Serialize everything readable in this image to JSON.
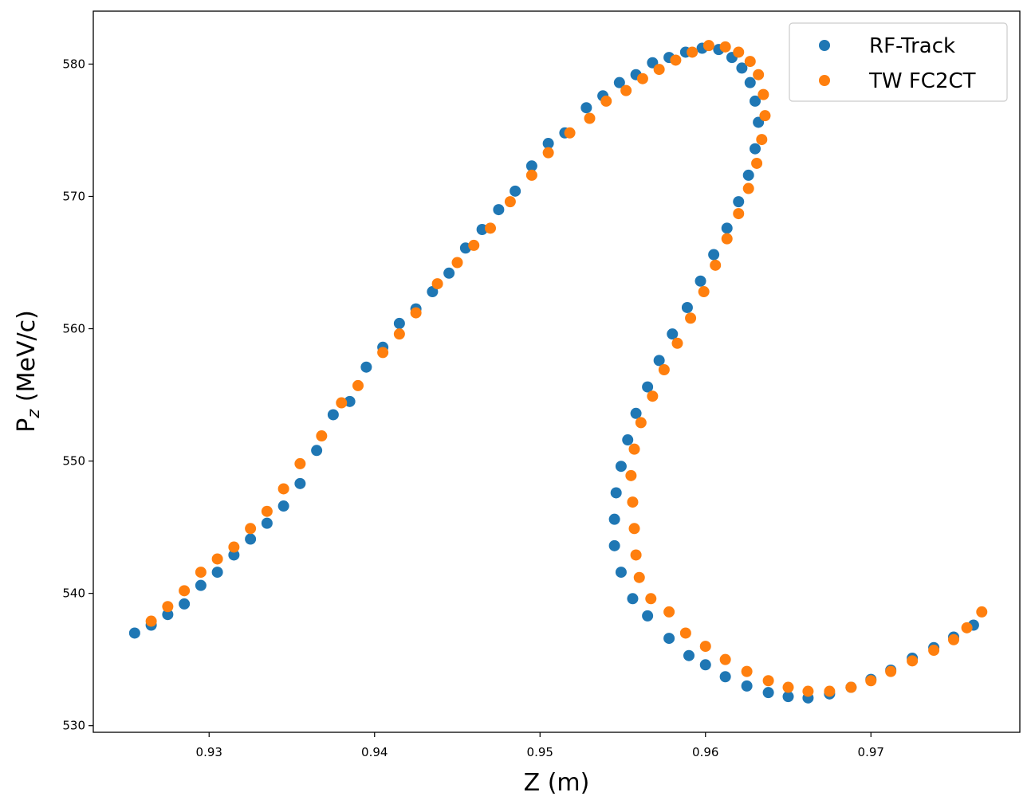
{
  "chart_data": {
    "type": "scatter",
    "xlabel": "Z (m)",
    "ylabel_main": "P",
    "ylabel_sub": "z",
    "ylabel_rest": " (MeV/c)",
    "xlim": [
      0.923,
      0.979
    ],
    "ylim": [
      529.5,
      584
    ],
    "xticks": [
      0.93,
      0.94,
      0.95,
      0.96,
      0.97
    ],
    "xtick_labels": [
      "0.93",
      "0.94",
      "0.95",
      "0.96",
      "0.97"
    ],
    "yticks": [
      530,
      540,
      550,
      560,
      570,
      580
    ],
    "ytick_labels": [
      "530",
      "540",
      "550",
      "560",
      "570",
      "580"
    ],
    "grid": false,
    "legend_position": "top-right",
    "series": [
      {
        "name": "RF-Track",
        "color": "#1f77b4",
        "points": [
          [
            0.9255,
            537.0
          ],
          [
            0.9265,
            537.6
          ],
          [
            0.9275,
            538.4
          ],
          [
            0.9285,
            539.2
          ],
          [
            0.9295,
            540.6
          ],
          [
            0.9305,
            541.6
          ],
          [
            0.9315,
            542.9
          ],
          [
            0.9325,
            544.1
          ],
          [
            0.9335,
            545.3
          ],
          [
            0.9345,
            546.6
          ],
          [
            0.9355,
            548.3
          ],
          [
            0.9365,
            550.8
          ],
          [
            0.9375,
            553.5
          ],
          [
            0.9385,
            554.5
          ],
          [
            0.9395,
            557.1
          ],
          [
            0.9405,
            558.6
          ],
          [
            0.9415,
            560.4
          ],
          [
            0.9425,
            561.5
          ],
          [
            0.9435,
            562.8
          ],
          [
            0.9445,
            564.2
          ],
          [
            0.9455,
            566.1
          ],
          [
            0.9465,
            567.5
          ],
          [
            0.9475,
            569.0
          ],
          [
            0.9485,
            570.4
          ],
          [
            0.9495,
            572.3
          ],
          [
            0.9505,
            574.0
          ],
          [
            0.9515,
            574.8
          ],
          [
            0.9528,
            576.7
          ],
          [
            0.9538,
            577.6
          ],
          [
            0.9548,
            578.6
          ],
          [
            0.9558,
            579.2
          ],
          [
            0.9568,
            580.1
          ],
          [
            0.9578,
            580.5
          ],
          [
            0.9588,
            580.9
          ],
          [
            0.9598,
            581.2
          ],
          [
            0.9608,
            581.1
          ],
          [
            0.9616,
            580.5
          ],
          [
            0.9622,
            579.7
          ],
          [
            0.9627,
            578.6
          ],
          [
            0.963,
            577.2
          ],
          [
            0.9632,
            575.6
          ],
          [
            0.963,
            573.6
          ],
          [
            0.9626,
            571.6
          ],
          [
            0.962,
            569.6
          ],
          [
            0.9613,
            567.6
          ],
          [
            0.9605,
            565.6
          ],
          [
            0.9597,
            563.6
          ],
          [
            0.9589,
            561.6
          ],
          [
            0.958,
            559.6
          ],
          [
            0.9572,
            557.6
          ],
          [
            0.9565,
            555.6
          ],
          [
            0.9558,
            553.6
          ],
          [
            0.9553,
            551.6
          ],
          [
            0.9549,
            549.6
          ],
          [
            0.9546,
            547.6
          ],
          [
            0.9545,
            545.6
          ],
          [
            0.9545,
            543.6
          ],
          [
            0.9549,
            541.6
          ],
          [
            0.9556,
            539.6
          ],
          [
            0.9565,
            538.3
          ],
          [
            0.9578,
            536.6
          ],
          [
            0.959,
            535.3
          ],
          [
            0.96,
            534.6
          ],
          [
            0.9612,
            533.7
          ],
          [
            0.9625,
            533.0
          ],
          [
            0.9638,
            532.5
          ],
          [
            0.965,
            532.2
          ],
          [
            0.9662,
            532.1
          ],
          [
            0.9675,
            532.4
          ],
          [
            0.9688,
            532.9
          ],
          [
            0.97,
            533.5
          ],
          [
            0.9712,
            534.2
          ],
          [
            0.9725,
            535.1
          ],
          [
            0.9738,
            535.9
          ],
          [
            0.975,
            536.7
          ],
          [
            0.9762,
            537.6
          ]
        ]
      },
      {
        "name": "TW FC2CT",
        "color": "#ff7f0e",
        "points": [
          [
            0.9265,
            537.9
          ],
          [
            0.9275,
            539.0
          ],
          [
            0.9285,
            540.2
          ],
          [
            0.9295,
            541.6
          ],
          [
            0.9305,
            542.6
          ],
          [
            0.9315,
            543.5
          ],
          [
            0.9325,
            544.9
          ],
          [
            0.9335,
            546.2
          ],
          [
            0.9345,
            547.9
          ],
          [
            0.9355,
            549.8
          ],
          [
            0.9368,
            551.9
          ],
          [
            0.938,
            554.4
          ],
          [
            0.939,
            555.7
          ],
          [
            0.9405,
            558.2
          ],
          [
            0.9415,
            559.6
          ],
          [
            0.9425,
            561.2
          ],
          [
            0.9438,
            563.4
          ],
          [
            0.945,
            565.0
          ],
          [
            0.946,
            566.3
          ],
          [
            0.947,
            567.6
          ],
          [
            0.9482,
            569.6
          ],
          [
            0.9495,
            571.6
          ],
          [
            0.9505,
            573.3
          ],
          [
            0.9518,
            574.8
          ],
          [
            0.953,
            575.9
          ],
          [
            0.954,
            577.2
          ],
          [
            0.9552,
            578.0
          ],
          [
            0.9562,
            578.9
          ],
          [
            0.9572,
            579.6
          ],
          [
            0.9582,
            580.3
          ],
          [
            0.9592,
            580.9
          ],
          [
            0.9602,
            581.4
          ],
          [
            0.9612,
            581.3
          ],
          [
            0.962,
            580.9
          ],
          [
            0.9627,
            580.2
          ],
          [
            0.9632,
            579.2
          ],
          [
            0.9635,
            577.7
          ],
          [
            0.9636,
            576.1
          ],
          [
            0.9634,
            574.3
          ],
          [
            0.9631,
            572.5
          ],
          [
            0.9626,
            570.6
          ],
          [
            0.962,
            568.7
          ],
          [
            0.9613,
            566.8
          ],
          [
            0.9606,
            564.8
          ],
          [
            0.9599,
            562.8
          ],
          [
            0.9591,
            560.8
          ],
          [
            0.9583,
            558.9
          ],
          [
            0.9575,
            556.9
          ],
          [
            0.9568,
            554.9
          ],
          [
            0.9561,
            552.9
          ],
          [
            0.9557,
            550.9
          ],
          [
            0.9555,
            548.9
          ],
          [
            0.9556,
            546.9
          ],
          [
            0.9557,
            544.9
          ],
          [
            0.9558,
            542.9
          ],
          [
            0.956,
            541.2
          ],
          [
            0.9567,
            539.6
          ],
          [
            0.9578,
            538.6
          ],
          [
            0.9588,
            537.0
          ],
          [
            0.96,
            536.0
          ],
          [
            0.9612,
            535.0
          ],
          [
            0.9625,
            534.1
          ],
          [
            0.9638,
            533.4
          ],
          [
            0.965,
            532.9
          ],
          [
            0.9662,
            532.6
          ],
          [
            0.9675,
            532.6
          ],
          [
            0.9688,
            532.9
          ],
          [
            0.97,
            533.4
          ],
          [
            0.9712,
            534.1
          ],
          [
            0.9725,
            534.9
          ],
          [
            0.9738,
            535.7
          ],
          [
            0.975,
            536.5
          ],
          [
            0.9758,
            537.4
          ],
          [
            0.9767,
            538.6
          ]
        ]
      }
    ]
  }
}
